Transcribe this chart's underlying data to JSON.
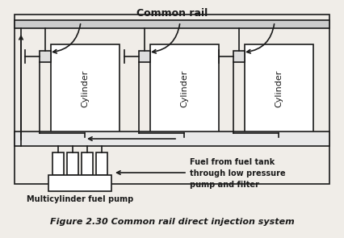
{
  "title": "Common rail",
  "caption": "Figure 2.30 Common rail direct injection system",
  "bg_color": "#f0ede8",
  "line_color": "#1a1a1a",
  "fill_color": "#ffffff",
  "cylinder_labels": [
    "Cylinder",
    "Cylinder",
    "Cylinder"
  ],
  "pump_label": "Multicylinder fuel pump",
  "fuel_label": "Fuel from fuel tank\nthrough low pressure\npump and filter",
  "font_size_title": 9,
  "font_size_label": 7,
  "font_size_cylinder": 8,
  "font_size_caption": 8,
  "lw": 1.2
}
